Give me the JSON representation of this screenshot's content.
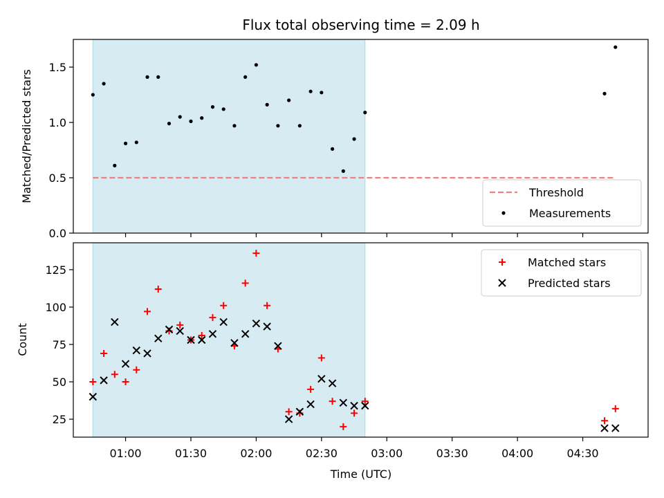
{
  "title": "Flux total observing time = 2.09 h",
  "chart_data": [
    {
      "type": "scatter",
      "ylabel": "Matched/Predicted stars",
      "xlim": [
        "00:36",
        "05:00"
      ],
      "ylim": [
        0,
        1.75
      ],
      "yticks": [
        0.0,
        0.5,
        1.0,
        1.5
      ],
      "ytick_labels": [
        "0.0",
        "0.5",
        "1.0",
        "1.5"
      ],
      "threshold": 0.5,
      "shaded_span": [
        "00:45",
        "02:50"
      ],
      "series": [
        {
          "name": "Measurements",
          "marker": "dot",
          "color": "#000000",
          "points": [
            [
              "00:45",
              1.25
            ],
            [
              "00:50",
              1.35
            ],
            [
              "00:55",
              0.61
            ],
            [
              "01:00",
              0.81
            ],
            [
              "01:05",
              0.82
            ],
            [
              "01:10",
              1.41
            ],
            [
              "01:15",
              1.41
            ],
            [
              "01:20",
              0.99
            ],
            [
              "01:25",
              1.05
            ],
            [
              "01:30",
              1.01
            ],
            [
              "01:35",
              1.04
            ],
            [
              "01:40",
              1.14
            ],
            [
              "01:45",
              1.12
            ],
            [
              "01:50",
              0.97
            ],
            [
              "01:55",
              1.41
            ],
            [
              "02:00",
              1.52
            ],
            [
              "02:05",
              1.16
            ],
            [
              "02:10",
              0.97
            ],
            [
              "02:15",
              1.2
            ],
            [
              "02:20",
              0.97
            ],
            [
              "02:25",
              1.28
            ],
            [
              "02:30",
              1.27
            ],
            [
              "02:35",
              0.76
            ],
            [
              "02:40",
              0.56
            ],
            [
              "02:45",
              0.85
            ],
            [
              "02:50",
              1.09
            ],
            [
              "04:40",
              1.26
            ],
            [
              "04:45",
              1.68
            ]
          ]
        },
        {
          "name": "Threshold",
          "marker": "dashed-line",
          "color": "#f08080",
          "points": [
            [
              "00:45",
              0.5
            ],
            [
              "04:45",
              0.5
            ]
          ]
        }
      ],
      "legend": {
        "placement": "lower-right",
        "entries": [
          "Threshold",
          "Measurements"
        ]
      }
    },
    {
      "type": "scatter",
      "xlabel": "Time (UTC)",
      "ylabel": "Count",
      "xlim": [
        "00:36",
        "05:00"
      ],
      "xticks": [
        "01:00",
        "01:30",
        "02:00",
        "02:30",
        "03:00",
        "03:30",
        "04:00",
        "04:30"
      ],
      "ylim": [
        13,
        143
      ],
      "yticks": [
        25,
        50,
        75,
        100,
        125
      ],
      "ytick_labels": [
        "25",
        "50",
        "75",
        "100",
        "125"
      ],
      "shaded_span": [
        "00:45",
        "02:50"
      ],
      "series": [
        {
          "name": "Matched stars",
          "marker": "plus",
          "color": "#ff0000",
          "points": [
            [
              "00:45",
              50
            ],
            [
              "00:50",
              69
            ],
            [
              "00:55",
              55
            ],
            [
              "01:00",
              50
            ],
            [
              "01:05",
              58
            ],
            [
              "01:10",
              97
            ],
            [
              "01:15",
              112
            ],
            [
              "01:20",
              84
            ],
            [
              "01:25",
              88
            ],
            [
              "01:30",
              78
            ],
            [
              "01:35",
              81
            ],
            [
              "01:40",
              93
            ],
            [
              "01:45",
              101
            ],
            [
              "01:50",
              74
            ],
            [
              "01:55",
              116
            ],
            [
              "02:00",
              136
            ],
            [
              "02:05",
              101
            ],
            [
              "02:10",
              72
            ],
            [
              "02:15",
              30
            ],
            [
              "02:20",
              29
            ],
            [
              "02:25",
              45
            ],
            [
              "02:30",
              66
            ],
            [
              "02:35",
              37
            ],
            [
              "02:40",
              20
            ],
            [
              "02:45",
              29
            ],
            [
              "02:50",
              37
            ],
            [
              "04:40",
              24
            ],
            [
              "04:45",
              32
            ]
          ]
        },
        {
          "name": "Predicted stars",
          "marker": "x",
          "color": "#000000",
          "points": [
            [
              "00:45",
              40
            ],
            [
              "00:50",
              51
            ],
            [
              "00:55",
              90
            ],
            [
              "01:00",
              62
            ],
            [
              "01:05",
              71
            ],
            [
              "01:10",
              69
            ],
            [
              "01:15",
              79
            ],
            [
              "01:20",
              85
            ],
            [
              "01:25",
              84
            ],
            [
              "01:30",
              78
            ],
            [
              "01:35",
              78
            ],
            [
              "01:40",
              82
            ],
            [
              "01:45",
              90
            ],
            [
              "01:50",
              76
            ],
            [
              "01:55",
              82
            ],
            [
              "02:00",
              89
            ],
            [
              "02:05",
              87
            ],
            [
              "02:10",
              74
            ],
            [
              "02:15",
              25
            ],
            [
              "02:20",
              30
            ],
            [
              "02:25",
              35
            ],
            [
              "02:30",
              52
            ],
            [
              "02:35",
              49
            ],
            [
              "02:40",
              36
            ],
            [
              "02:45",
              34
            ],
            [
              "02:50",
              34
            ],
            [
              "04:40",
              19
            ],
            [
              "04:45",
              19
            ]
          ]
        }
      ],
      "legend": {
        "placement": "upper-right",
        "entries": [
          "Matched stars",
          "Predicted stars"
        ]
      }
    }
  ],
  "colors": {
    "shade": "#add8e6",
    "threshold": "#f08080",
    "matched": "#ff0000",
    "predicted": "#000000"
  }
}
